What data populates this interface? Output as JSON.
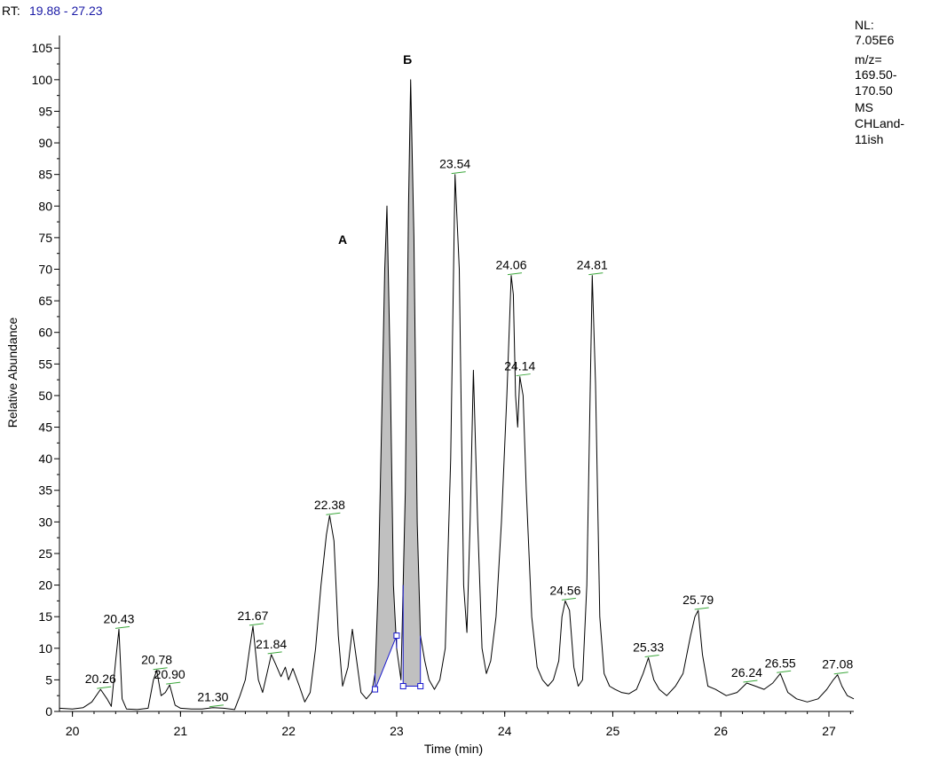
{
  "header": {
    "rt_prefix": "RT:",
    "rt_range": "19.88 - 27.23"
  },
  "info_box": {
    "lines": [
      "NL:",
      "7.05E6",
      "m/z=",
      "169.50-",
      "170.50",
      "MS",
      "CHLand-",
      "11ish"
    ]
  },
  "chart_data": {
    "type": "line",
    "title": "",
    "xlabel": "Time (min)",
    "ylabel": "Relative Abundance",
    "xlim": [
      19.88,
      27.23
    ],
    "ylim": [
      0,
      107
    ],
    "x_ticks": [
      20,
      21,
      22,
      23,
      24,
      25,
      26,
      27
    ],
    "y_ticks": [
      0,
      5,
      10,
      15,
      20,
      25,
      30,
      35,
      40,
      45,
      50,
      55,
      60,
      65,
      70,
      75,
      80,
      85,
      90,
      95,
      100,
      105
    ],
    "line_color": "#000000",
    "fill_color": "#c0c0c0",
    "baseline_color": "#1a1ad0",
    "label_tick_color": "#3aa63a",
    "trace": {
      "x": [
        19.88,
        20.0,
        20.1,
        20.18,
        20.26,
        20.32,
        20.36,
        20.4,
        20.43,
        20.46,
        20.5,
        20.6,
        20.7,
        20.75,
        20.78,
        20.82,
        20.86,
        20.9,
        20.95,
        21.0,
        21.1,
        21.2,
        21.3,
        21.4,
        21.5,
        21.55,
        21.6,
        21.64,
        21.67,
        21.72,
        21.76,
        21.8,
        21.84,
        21.88,
        21.93,
        21.97,
        22.0,
        22.04,
        22.1,
        22.15,
        22.2,
        22.25,
        22.3,
        22.35,
        22.38,
        22.42,
        22.46,
        22.5,
        22.55,
        22.59,
        22.63,
        22.67,
        22.72,
        22.77,
        22.8,
        22.83,
        22.86,
        22.89,
        22.91,
        22.94,
        22.97,
        23.0,
        23.04,
        23.08,
        23.11,
        23.13,
        23.16,
        23.19,
        23.22,
        23.26,
        23.3,
        23.35,
        23.4,
        23.45,
        23.5,
        23.54,
        23.58,
        23.62,
        23.65,
        23.68,
        23.71,
        23.75,
        23.79,
        23.83,
        23.87,
        23.92,
        23.97,
        24.02,
        24.06,
        24.08,
        24.1,
        24.12,
        24.14,
        24.17,
        24.2,
        24.25,
        24.3,
        24.35,
        24.4,
        24.45,
        24.5,
        24.53,
        24.56,
        24.6,
        24.64,
        24.68,
        24.72,
        24.76,
        24.79,
        24.81,
        24.84,
        24.88,
        24.92,
        24.97,
        25.02,
        25.08,
        25.15,
        25.22,
        25.28,
        25.33,
        25.38,
        25.43,
        25.5,
        25.58,
        25.65,
        25.72,
        25.76,
        25.79,
        25.83,
        25.88,
        25.95,
        26.05,
        26.15,
        26.24,
        26.32,
        26.4,
        26.48,
        26.55,
        26.62,
        26.7,
        26.8,
        26.9,
        26.98,
        27.04,
        27.08,
        27.12,
        27.17,
        27.23
      ],
      "y": [
        0.5,
        0.4,
        0.6,
        1.5,
        3.5,
        2.0,
        0.8,
        8.0,
        13.0,
        2.0,
        0.4,
        0.3,
        0.5,
        5.0,
        6.5,
        2.5,
        3.0,
        4.2,
        1.0,
        0.5,
        0.4,
        0.4,
        0.6,
        0.5,
        0.3,
        2.5,
        5.0,
        10.0,
        13.5,
        5.0,
        3.0,
        6.0,
        9.0,
        7.5,
        5.5,
        7.0,
        5.0,
        6.8,
        4.0,
        1.5,
        3.0,
        10.0,
        20.0,
        28.0,
        31.0,
        27.0,
        12.0,
        4.0,
        7.0,
        13.0,
        8.0,
        3.0,
        2.0,
        3.0,
        6.0,
        20.0,
        45.0,
        70.0,
        80.0,
        55.0,
        20.0,
        10.0,
        5.0,
        35.0,
        80.0,
        100.0,
        75.0,
        30.0,
        12.0,
        8.0,
        5.0,
        3.5,
        5.0,
        10.0,
        40.0,
        85.0,
        70.0,
        20.0,
        12.5,
        30.0,
        54.0,
        30.0,
        10.0,
        6.0,
        8.0,
        15.0,
        30.0,
        50.0,
        69.0,
        66.0,
        50.0,
        45.0,
        53.0,
        50.0,
        35.0,
        15.0,
        7.0,
        5.0,
        4.0,
        5.0,
        8.0,
        15.0,
        17.5,
        16.0,
        7.0,
        4.0,
        5.0,
        20.0,
        50.0,
        69.0,
        52.0,
        15.0,
        6.0,
        4.0,
        3.5,
        3.0,
        2.8,
        3.5,
        6.0,
        8.5,
        5.0,
        3.5,
        2.5,
        4.0,
        6.0,
        12.0,
        15.0,
        16.0,
        9.0,
        4.0,
        3.5,
        2.5,
        3.0,
        4.5,
        4.0,
        3.5,
        4.5,
        6.0,
        3.0,
        2.0,
        1.5,
        2.0,
        3.5,
        5.0,
        5.8,
        4.0,
        2.5,
        2.0
      ]
    },
    "peak_labels": [
      {
        "text": "20.26",
        "x": 20.26,
        "y": 3.5
      },
      {
        "text": "20.43",
        "x": 20.43,
        "y": 13.0
      },
      {
        "text": "20.78",
        "x": 20.78,
        "y": 6.5
      },
      {
        "text": "20.90",
        "x": 20.9,
        "y": 4.2
      },
      {
        "text": "21.30",
        "x": 21.3,
        "y": 0.6
      },
      {
        "text": "21.67",
        "x": 21.67,
        "y": 13.5
      },
      {
        "text": "21.84",
        "x": 21.84,
        "y": 9.0
      },
      {
        "text": "22.38",
        "x": 22.38,
        "y": 31.0
      },
      {
        "text": "23.54",
        "x": 23.54,
        "y": 85.0
      },
      {
        "text": "24.06",
        "x": 24.06,
        "y": 69.0
      },
      {
        "text": "24.14",
        "x": 24.14,
        "y": 53.0
      },
      {
        "text": "24.56",
        "x": 24.56,
        "y": 17.5
      },
      {
        "text": "24.81",
        "x": 24.81,
        "y": 69.0
      },
      {
        "text": "25.33",
        "x": 25.33,
        "y": 8.5
      },
      {
        "text": "25.79",
        "x": 25.79,
        "y": 16.0
      },
      {
        "text": "26.24",
        "x": 26.24,
        "y": 4.5
      },
      {
        "text": "26.55",
        "x": 26.55,
        "y": 6.0
      },
      {
        "text": "27.08",
        "x": 27.08,
        "y": 5.8
      }
    ],
    "integrated_peaks": [
      {
        "name": "A",
        "x_start": 22.8,
        "x_end": 23.0,
        "y_start": 3.5,
        "y_end": 12.0
      },
      {
        "name": "Б",
        "x_start": 23.06,
        "x_end": 23.22,
        "y_start": 4.0,
        "y_end": 4.0
      }
    ],
    "annotations": [
      {
        "text": "A",
        "x": 22.5,
        "y": 74.0
      },
      {
        "text": "Б",
        "x": 23.1,
        "y": 102.5
      }
    ]
  }
}
